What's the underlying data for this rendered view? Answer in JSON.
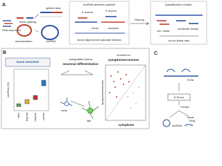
{
  "panel_a": {
    "label": "A",
    "reads_label": "RNA-seq reads",
    "linear_splicing": "linear splicing",
    "spliced_read": "spliced read",
    "circularization": "circularization",
    "circrna": "circRNA",
    "pipeline": {
      "title": "circRNA detection pipeline",
      "anchor5": "5' anchor",
      "anchor3": "3' anchor",
      "donor": "donor",
      "acceptor": "acceptor",
      "caption": "Anchor alignment and spliceable detection"
    },
    "filtering": "Filtering",
    "quant": {
      "title": "Quantification module",
      "circ_reads": "circ. reads",
      "min_linear": "min(linear reads)",
      "ratio": "circ-to-linear ratio"
    }
  },
  "panel_b": {
    "label": "B",
    "brain": "brain enriched",
    "y_label": "circRNA (%)",
    "tissues": [
      "liver",
      "thyroid",
      "muscle",
      "cortex"
    ],
    "upregulated": "upregulated during",
    "neuronal": "neuronal differentiation",
    "early": "early",
    "late": "late",
    "enriched": "enriched in",
    "synapto_title": "synaptoneurosomes",
    "synapto_axis": "synaptoneurosomes",
    "cytoplasm": "cytoplasm"
  },
  "panel_c": {
    "label": "C",
    "rcm": "RCM",
    "nscore": "N-Score",
    "predict": "Predict",
    "circrna": "circRNA",
    "linear1": "linear",
    "linear2": "RNA"
  }
}
